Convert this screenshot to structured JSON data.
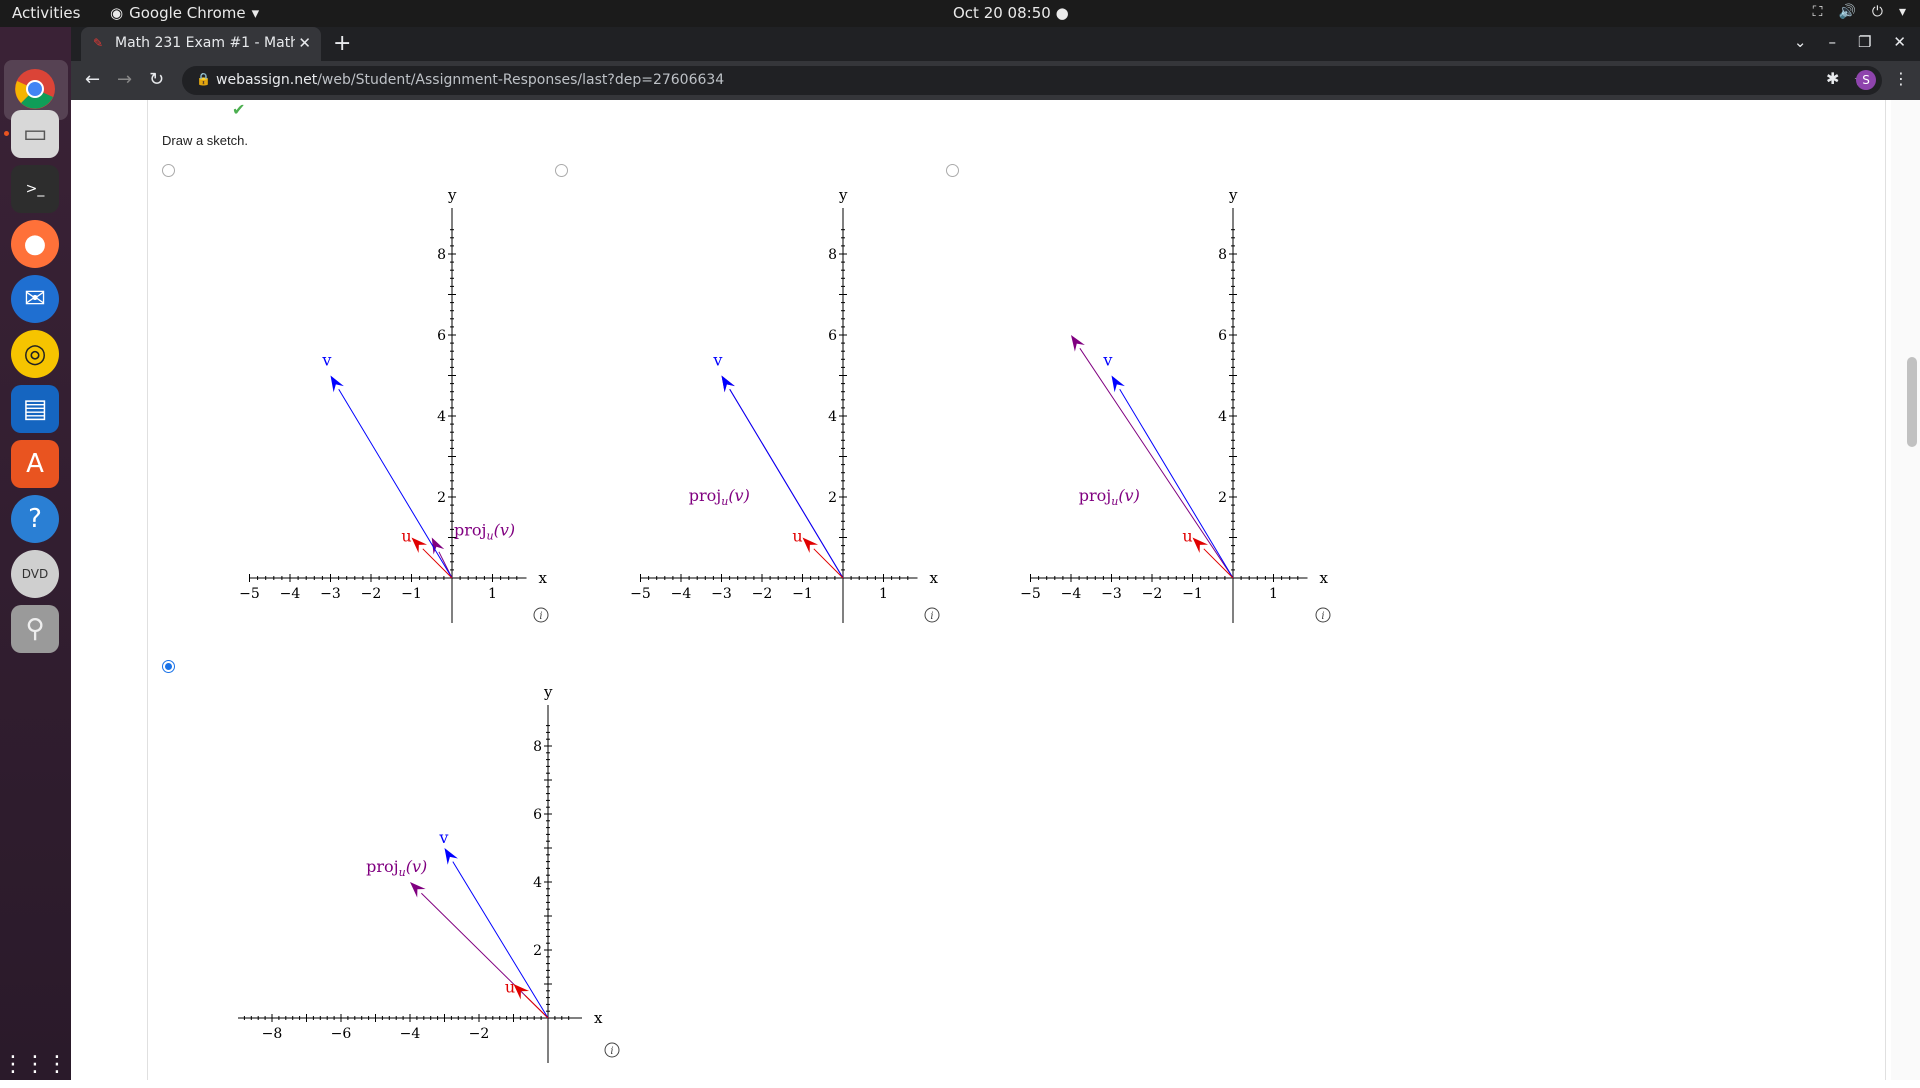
{
  "system": {
    "activities": "Activities",
    "app_name": "Google Chrome",
    "clock": "Oct 20  08:50"
  },
  "browser": {
    "tab_title": "Math 231 Exam #1 - Math",
    "url_host": "webassign.net",
    "url_path": "/web/Student/Assignment-Responses/last?dep=27606634",
    "profile_initial": "S"
  },
  "question": {
    "prompt": "Draw a sketch.",
    "selected_option": 4,
    "options": [
      {
        "label_v": "v",
        "label_u": "u",
        "label_proj": "proj",
        "label_sub": "u",
        "label_arg": "(v)"
      },
      {
        "label_v": "v",
        "label_u": "u",
        "label_proj": "proj",
        "label_sub": "u",
        "label_arg": "(v)"
      },
      {
        "label_v": "v",
        "label_u": "u",
        "label_proj": "proj",
        "label_sub": "u",
        "label_arg": "(v)"
      },
      {
        "label_v": "v",
        "label_u": "u",
        "label_proj": "proj",
        "label_sub": "u",
        "label_arg": "(v)"
      }
    ]
  },
  "chart_data": [
    {
      "type": "scatter",
      "xlabel": "x",
      "ylabel": "y",
      "x_ticks": [
        "−5",
        "−4",
        "−3",
        "−2",
        "−1",
        "1"
      ],
      "y_ticks": [
        "2",
        "4",
        "6",
        "8"
      ],
      "vectors": [
        {
          "name": "v",
          "from": [
            0,
            0
          ],
          "to": [
            -3,
            5
          ],
          "color": "#0000ff"
        },
        {
          "name": "u",
          "from": [
            0,
            0
          ],
          "to": [
            -1,
            1
          ],
          "color": "#e00000"
        },
        {
          "name": "proj",
          "from": [
            0,
            0
          ],
          "to": [
            -0.5,
            1
          ],
          "color": "#800080"
        }
      ]
    },
    {
      "type": "scatter",
      "xlabel": "x",
      "ylabel": "y",
      "x_ticks": [
        "−5",
        "−4",
        "−3",
        "−2",
        "−1",
        "1"
      ],
      "y_ticks": [
        "2",
        "4",
        "6",
        "8"
      ],
      "vectors": [
        {
          "name": "v",
          "from": [
            0,
            0
          ],
          "to": [
            -3,
            5
          ],
          "color": "#0000ff"
        },
        {
          "name": "u",
          "from": [
            0,
            0
          ],
          "to": [
            -1,
            1
          ],
          "color": "#e00000"
        },
        {
          "name": "proj",
          "from": [
            0,
            0
          ],
          "to": [
            -3,
            5
          ],
          "color": "#800080"
        }
      ]
    },
    {
      "type": "scatter",
      "xlabel": "x",
      "ylabel": "y",
      "x_ticks": [
        "−5",
        "−4",
        "−3",
        "−2",
        "−1",
        "1"
      ],
      "y_ticks": [
        "2",
        "4",
        "6",
        "8"
      ],
      "vectors": [
        {
          "name": "v",
          "from": [
            0,
            0
          ],
          "to": [
            -3,
            5
          ],
          "color": "#0000ff"
        },
        {
          "name": "u",
          "from": [
            0,
            0
          ],
          "to": [
            -1,
            1
          ],
          "color": "#e00000"
        },
        {
          "name": "proj",
          "from": [
            0,
            0
          ],
          "to": [
            -4,
            6
          ],
          "color": "#800080"
        }
      ]
    },
    {
      "type": "scatter",
      "xlabel": "x",
      "ylabel": "y",
      "x_ticks": [
        "−8",
        "−6",
        "−4",
        "−2"
      ],
      "y_ticks": [
        "2",
        "4",
        "6",
        "8"
      ],
      "vectors": [
        {
          "name": "v",
          "from": [
            0,
            0
          ],
          "to": [
            -3,
            5
          ],
          "color": "#0000ff"
        },
        {
          "name": "u",
          "from": [
            0,
            0
          ],
          "to": [
            -1,
            1
          ],
          "color": "#e00000"
        },
        {
          "name": "proj",
          "from": [
            0,
            0
          ],
          "to": [
            -4,
            4
          ],
          "color": "#800080"
        }
      ]
    }
  ]
}
